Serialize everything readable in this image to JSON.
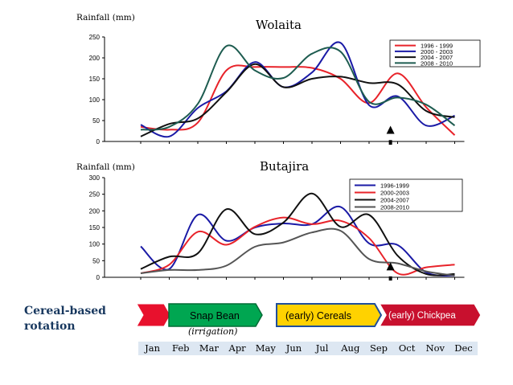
{
  "rotation": {
    "label_line1": "Cereal-based",
    "label_line2": "rotation",
    "crops": [
      {
        "name": "Snap Bean",
        "fill": "#00a651",
        "border": "#006b35"
      },
      {
        "name": "(early) Cereals",
        "fill": "#ffd200",
        "border": "#1f4e9c"
      },
      {
        "name": "(early) Chickpea",
        "fill": "#c8102e",
        "border": "#ffffff"
      }
    ],
    "lead_arrow_fill": "#e8112d",
    "irrigation_note": "(irrigation)",
    "months": [
      "Jan",
      "Feb",
      "Mar",
      "Apr",
      "May",
      "Jun",
      "Jul",
      "Aug",
      "Sep",
      "Oct",
      "Nov",
      "Dec"
    ]
  },
  "chart_data": [
    {
      "type": "line",
      "title": "Wolaita",
      "ylabel": "Rainfall (mm)",
      "ylim": [
        0,
        250
      ],
      "yticks": [
        0,
        50,
        100,
        150,
        200,
        250
      ],
      "categories": [
        "Jan",
        "Feb",
        "Mar",
        "Apr",
        "May",
        "Jun",
        "Jul",
        "Aug",
        "Sep",
        "Oct",
        "Nov",
        "Dec"
      ],
      "legend": "top-right",
      "marker_month_index": 8.75,
      "series": [
        {
          "name": "1996 - 1999",
          "color": "#e8232a",
          "values": [
            35,
            28,
            45,
            170,
            178,
            178,
            176,
            150,
            92,
            163,
            82,
            15
          ]
        },
        {
          "name": "2000 - 2003",
          "color": "#1a1aa6",
          "values": [
            40,
            12,
            80,
            120,
            190,
            130,
            165,
            236,
            87,
            108,
            38,
            62
          ]
        },
        {
          "name": "2004 - 2007",
          "color": "#111111",
          "values": [
            12,
            42,
            55,
            118,
            185,
            130,
            150,
            155,
            140,
            137,
            73,
            58
          ]
        },
        {
          "name": "2008 - 2010",
          "color": "#1e5c50",
          "values": [
            28,
            35,
            90,
            228,
            170,
            152,
            210,
            215,
            95,
            105,
            88,
            38
          ]
        }
      ]
    },
    {
      "type": "line",
      "title": "Butajira",
      "ylabel": "Rainfall (mm)",
      "ylim": [
        0,
        300
      ],
      "yticks": [
        0,
        50,
        100,
        150,
        200,
        250,
        300
      ],
      "categories": [
        "Jan",
        "Feb",
        "Mar",
        "Apr",
        "May",
        "Jun",
        "Jul",
        "Aug",
        "Sep",
        "Oct",
        "Nov",
        "Dec"
      ],
      "legend": "top-right",
      "marker_month_index": 8.75,
      "series": [
        {
          "name": "1996-1999",
          "color": "#1a1aa6",
          "values": [
            93,
            25,
            188,
            110,
            150,
            162,
            160,
            212,
            102,
            97,
            15,
            5
          ]
        },
        {
          "name": "2000-2003",
          "color": "#e8232a",
          "values": [
            12,
            38,
            137,
            98,
            152,
            180,
            160,
            170,
            118,
            12,
            30,
            38
          ]
        },
        {
          "name": "2004-2007",
          "color": "#111111",
          "values": [
            25,
            62,
            72,
            205,
            130,
            165,
            252,
            152,
            188,
            65,
            10,
            10
          ]
        },
        {
          "name": "2008-2010",
          "color": "#555555",
          "values": [
            12,
            22,
            22,
            35,
            92,
            105,
            135,
            140,
            55,
            42,
            18,
            5
          ]
        }
      ]
    }
  ]
}
